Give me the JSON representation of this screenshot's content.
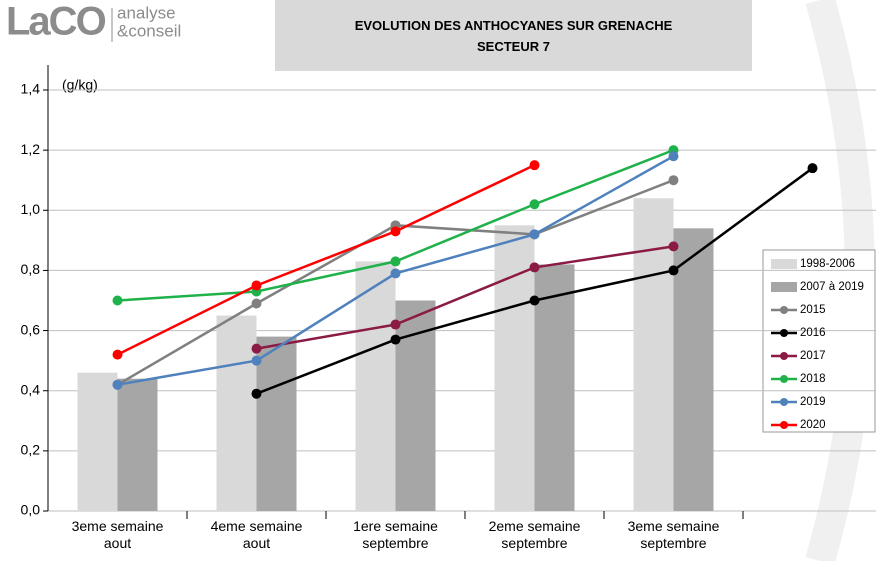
{
  "logo": {
    "brand": "LaCO",
    "line1": "analyse",
    "line2": "&conseil"
  },
  "chart_data": {
    "type": "bar_line",
    "title": "EVOLUTION DES ANTHOCYANES SUR GRENACHE\nSECTEUR 7",
    "y_unit": "(g/kg)",
    "categories": [
      "3eme semaine\naout",
      "4eme semaine\naout",
      "1ere semaine\nseptembre",
      "2eme semaine\nseptembre",
      "3eme semaine\nseptembre",
      null
    ],
    "ylim": [
      0,
      1.4
    ],
    "yticks": [
      {
        "value": 0,
        "label": "0,0"
      },
      {
        "value": 0.2,
        "label": "0,2"
      },
      {
        "value": 0.4,
        "label": "0,4"
      },
      {
        "value": 0.6,
        "label": "0,6"
      },
      {
        "value": 0.8,
        "label": "0,8"
      },
      {
        "value": 1.0,
        "label": "1,0"
      },
      {
        "value": 1.2,
        "label": "1,2"
      },
      {
        "value": 1.4,
        "label": "1,4"
      }
    ],
    "grid": true,
    "legend": "right",
    "series": [
      {
        "name": "1998-2006",
        "kind": "bar",
        "color": "#d9d9d9",
        "values": [
          0.46,
          0.65,
          0.83,
          0.95,
          1.04,
          null
        ]
      },
      {
        "name": "2007 à 2019",
        "kind": "bar",
        "color": "#a6a6a6",
        "values": [
          0.44,
          0.58,
          0.7,
          0.82,
          0.94,
          null
        ]
      },
      {
        "name": "2015",
        "kind": "line",
        "color": "#808080",
        "values": [
          0.42,
          0.69,
          0.95,
          0.92,
          1.1,
          null
        ]
      },
      {
        "name": "2016",
        "kind": "line",
        "color": "#000000",
        "values": [
          null,
          0.39,
          0.57,
          0.7,
          0.8,
          1.14
        ]
      },
      {
        "name": "2017",
        "kind": "line",
        "color": "#8b1a45",
        "values": [
          null,
          0.54,
          0.62,
          0.81,
          0.88,
          null
        ]
      },
      {
        "name": "2018",
        "kind": "line",
        "color": "#1fb24a",
        "values": [
          0.7,
          0.73,
          0.83,
          1.02,
          1.2,
          null
        ]
      },
      {
        "name": "2019",
        "kind": "line",
        "color": "#4f81bd",
        "values": [
          0.42,
          0.5,
          0.79,
          0.92,
          1.18,
          null
        ]
      },
      {
        "name": "2020",
        "kind": "line",
        "color": "#ff0000",
        "values": [
          0.52,
          0.75,
          0.93,
          1.15,
          null,
          null
        ]
      }
    ]
  }
}
